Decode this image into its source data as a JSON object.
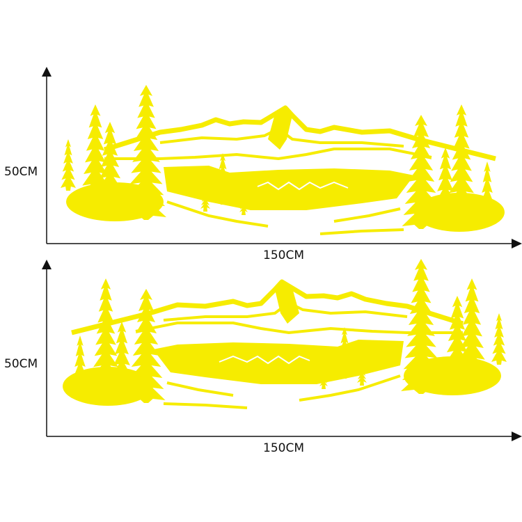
{
  "colors": {
    "decal": "#f6ec00",
    "axis": "#111111"
  },
  "panels": [
    {
      "height_label": "50CM",
      "width_label": "150CM"
    },
    {
      "height_label": "50CM",
      "width_label": "150CM"
    }
  ]
}
